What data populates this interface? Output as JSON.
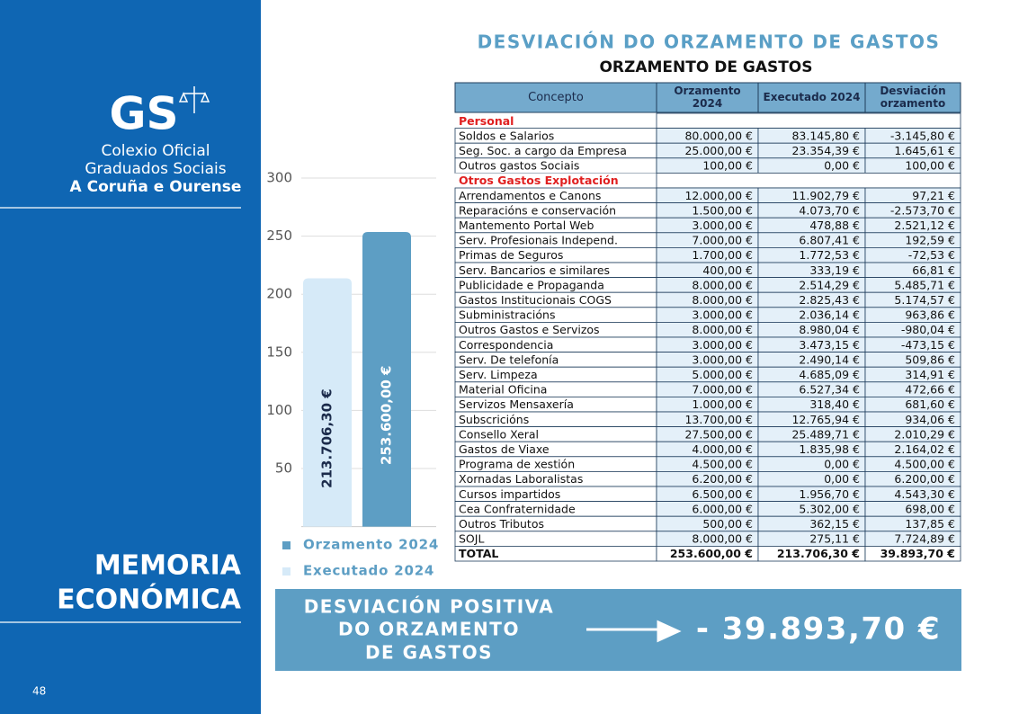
{
  "sidebar": {
    "logo": "GS",
    "org_lines": [
      "Colexio Oficial",
      "Graduados Sociais",
      "A Coruña e Ourense"
    ],
    "section_title_lines": [
      "MEMORIA",
      "ECONÓMICA"
    ],
    "page_number": "48"
  },
  "header": {
    "title": "DESVIACIÓN DO ORZAMENTO DE GASTOS",
    "subtitle": "ORZAMENTO DE GASTOS"
  },
  "chart_data": {
    "type": "bar",
    "ylim": [
      0,
      300
    ],
    "yticks": [
      50,
      100,
      150,
      200,
      250,
      300
    ],
    "grid": true,
    "series": [
      {
        "name": "Executado 2024",
        "color": "#d6eaf8",
        "values": [
          213.7063
        ],
        "value_labels": [
          "213.706,30 €"
        ]
      },
      {
        "name": "Orzamento 2024",
        "color": "#5d9ec4",
        "values": [
          253.6
        ],
        "value_labels": [
          "253.600,00 €"
        ]
      }
    ]
  },
  "table": {
    "header": [
      [
        "Concepto"
      ],
      [
        "Orzamento",
        "2024"
      ],
      [
        "Executado 2024"
      ],
      [
        "Desviación",
        "orzamento"
      ]
    ],
    "sections": [
      {
        "title": "Personal",
        "rows": [
          [
            "Soldos e Salarios",
            "80.000,00 €",
            "83.145,80 €",
            "-3.145,80 €"
          ],
          [
            "Seg. Soc. a cargo da Empresa",
            "25.000,00 €",
            "23.354,39 €",
            "1.645,61 €"
          ],
          [
            "Outros gastos Sociais",
            "100,00 €",
            "0,00 €",
            "100,00 €"
          ]
        ]
      },
      {
        "title": "Otros Gastos Explotación",
        "rows": [
          [
            "Arrendamentos e Canons",
            "12.000,00 €",
            "11.902,79 €",
            "97,21 €"
          ],
          [
            "Reparacións e conservación",
            "1.500,00 €",
            "4.073,70 €",
            "-2.573,70 €"
          ],
          [
            "Mantemento Portal Web",
            "3.000,00 €",
            "478,88 €",
            "2.521,12 €"
          ],
          [
            "Serv. Profesionais Independ.",
            "7.000,00 €",
            "6.807,41 €",
            "192,59 €"
          ],
          [
            "Primas de Seguros",
            "1.700,00 €",
            "1.772,53 €",
            "-72,53 €"
          ],
          [
            "Serv. Bancarios e similares",
            "400,00 €",
            "333,19 €",
            "66,81 €"
          ],
          [
            "Publicidade e Propaganda",
            "8.000,00 €",
            "2.514,29 €",
            "5.485,71 €"
          ],
          [
            "Gastos Institucionais COGS",
            "8.000,00 €",
            "2.825,43 €",
            "5.174,57 €"
          ],
          [
            "Subministracións",
            "3.000,00 €",
            "2.036,14 €",
            "963,86 €"
          ],
          [
            "Outros Gastos e Servizos",
            "8.000,00 €",
            "8.980,04 €",
            "-980,04 €"
          ],
          [
            "Correspondencia",
            "3.000,00 €",
            "3.473,15 €",
            "-473,15 €"
          ],
          [
            "Serv. De telefonía",
            "3.000,00 €",
            "2.490,14 €",
            "509,86 €"
          ],
          [
            "Serv. Limpeza",
            "5.000,00 €",
            "4.685,09 €",
            "314,91 €"
          ],
          [
            "Material Oficina",
            "7.000,00 €",
            "6.527,34 €",
            "472,66 €"
          ],
          [
            "Servizos Mensaxería",
            "1.000,00 €",
            "318,40 €",
            "681,60 €"
          ],
          [
            "Subscricións",
            "13.700,00 €",
            "12.765,94 €",
            "934,06 €"
          ],
          [
            "Consello Xeral",
            "27.500,00 €",
            "25.489,71 €",
            "2.010,29 €"
          ],
          [
            "Gastos de Viaxe",
            "4.000,00 €",
            "1.835,98 €",
            "2.164,02 €"
          ],
          [
            "Programa de xestión",
            "4.500,00 €",
            "0,00 €",
            "4.500,00 €"
          ],
          [
            "Xornadas Laboralistas",
            "6.200,00 €",
            "0,00 €",
            "6.200,00 €"
          ],
          [
            "Cursos impartidos",
            "6.500,00 €",
            "1.956,70 €",
            "4.543,30 €"
          ],
          [
            "Cea Confraternidade",
            "6.000,00 €",
            "5.302,00 €",
            "698,00 €"
          ],
          [
            "Outros Tributos",
            "500,00 €",
            "362,15 €",
            "137,85 €"
          ],
          [
            "SOJL",
            "8.000,00 €",
            "275,11 €",
            "7.724,89 €"
          ]
        ]
      }
    ],
    "total": [
      "TOTAL",
      "253.600,00 €",
      "213.706,30 €",
      "39.893,70 €"
    ]
  },
  "summary": {
    "label_lines": [
      "DESVIACIÓN POSITIVA",
      "DO ORZAMENTO",
      "DE GASTOS"
    ],
    "amount": "- 39.893,70 €"
  }
}
